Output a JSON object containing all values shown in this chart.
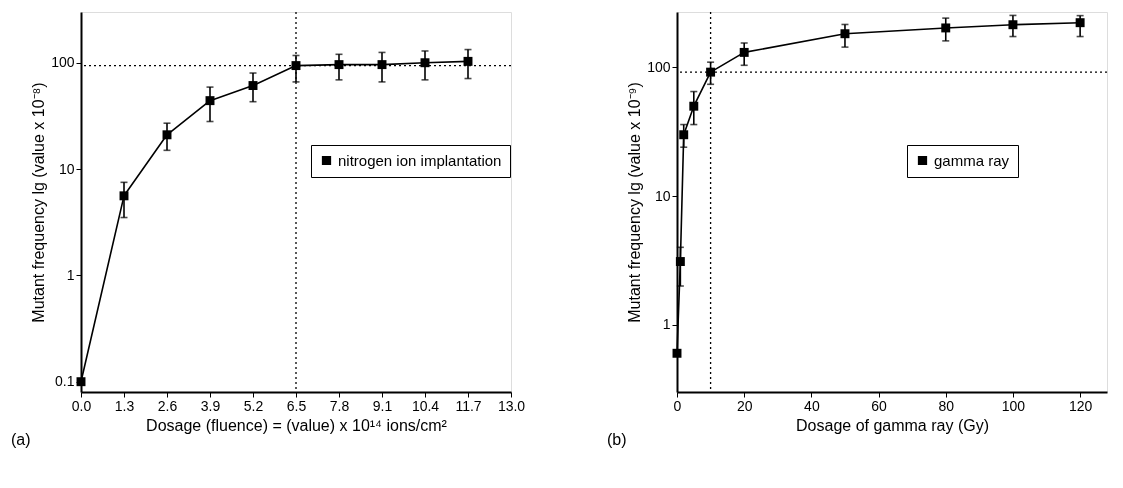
{
  "chart_data": [
    {
      "type": "line",
      "xlabel": "Dosage (fluence) = (value) x 10¹⁴ ions/cm²",
      "ylabel": "Mutant frequency lg (value x 10⁻⁸)",
      "log": "y",
      "marker": "square",
      "line_style": "solid",
      "legend": "right",
      "grid": false,
      "x": [
        0,
        1.3,
        2.6,
        3.9,
        5.2,
        6.5,
        7.8,
        9.1,
        10.4,
        11.7
      ],
      "series": [
        {
          "name": "nitrogen ion implantation",
          "color": "#000000",
          "values": [
            0.1,
            5.6,
            21,
            44,
            61,
            94,
            96,
            96,
            100,
            103
          ],
          "errors": [
            null,
            [
              3.5,
              7.5
            ],
            [
              15,
              27
            ],
            [
              28,
              59
            ],
            [
              43,
              80
            ],
            [
              66,
              117
            ],
            [
              69,
              120
            ],
            [
              66,
              125
            ],
            [
              69,
              129
            ],
            [
              71,
              133
            ]
          ]
        }
      ],
      "xlim": [
        0,
        13
      ],
      "xticks": [
        {
          "value": 0,
          "label": "0.0"
        },
        1.3,
        2.6,
        3.9,
        5.2,
        6.5,
        7.8,
        9.1,
        10.4,
        11.7,
        {
          "value": 13,
          "label": "13.0"
        }
      ],
      "ylim": [
        0.08,
        300
      ],
      "yticks": [
        0.1,
        1,
        10,
        100
      ],
      "ref_lines": [
        {
          "axis": "y",
          "value": 94,
          "line_style": "dotted"
        },
        {
          "axis": "x",
          "value": 6.5,
          "line_style": "dotted"
        }
      ],
      "annotations": [
        "(a)"
      ]
    },
    {
      "type": "line",
      "xlabel": "Dosage of gamma ray (Gy)",
      "ylabel": "Mutant frequency lg (value x 10⁻⁹)",
      "log": "y",
      "marker": "square",
      "line_style": "solid",
      "legend": "right",
      "grid": false,
      "x": [
        0,
        1,
        2,
        5,
        10,
        20,
        50,
        80,
        100,
        120
      ],
      "series": [
        {
          "name": "gamma ray",
          "color": "#000000",
          "values": [
            0.6,
            3.1,
            30,
            50,
            92,
            131,
            183,
            203,
            215,
            223
          ],
          "errors": [
            null,
            [
              2,
              4
            ],
            [
              24,
              36
            ],
            [
              36,
              65
            ],
            [
              74,
              110
            ],
            [
              104,
              155
            ],
            [
              144,
              216
            ],
            [
              161,
              242
            ],
            [
              174,
              254
            ],
            [
              174,
              253
            ]
          ]
        }
      ],
      "xlim": [
        0,
        128
      ],
      "xticks": [
        0,
        20,
        40,
        60,
        80,
        100,
        120
      ],
      "ylim": [
        0.3,
        270
      ],
      "yticks": [
        1,
        10,
        100
      ],
      "ref_lines": [
        {
          "axis": "y",
          "value": 92,
          "line_style": "dotted"
        },
        {
          "axis": "x",
          "value": 10,
          "line_style": "dotted"
        }
      ],
      "annotations": [
        "(b)"
      ]
    }
  ]
}
